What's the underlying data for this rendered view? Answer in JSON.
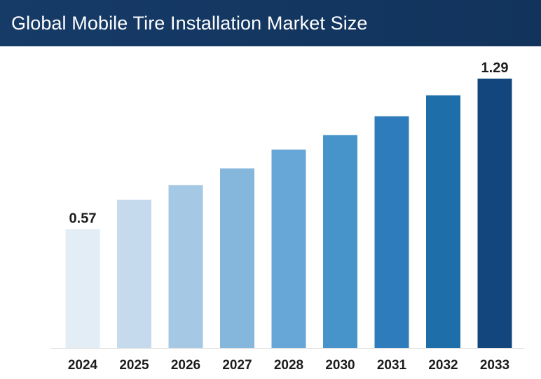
{
  "header": {
    "title": "Global Mobile Tire Installation Market Size"
  },
  "colors": {
    "header_background": "#143862",
    "bar_colors": [
      "#e3edf6",
      "#c5daec",
      "#a5c8e4",
      "#85b7dd",
      "#66a7d8",
      "#4794cb",
      "#2e7cbb",
      "#1e6ea9",
      "#13467d"
    ],
    "baseline": "#e6e6e6"
  },
  "chart_data": {
    "type": "bar",
    "title": "Global Mobile Tire Installation Market Size",
    "xlabel": "",
    "ylabel": "",
    "categories": [
      "2024",
      "2025",
      "2026",
      "2027",
      "2028",
      "2030",
      "2031",
      "2032",
      "2033"
    ],
    "values": [
      0.57,
      0.71,
      0.78,
      0.86,
      0.95,
      1.02,
      1.11,
      1.21,
      1.29
    ],
    "data_labels": [
      {
        "index": 0,
        "text": "0.57"
      },
      {
        "index": 8,
        "text": "1.29"
      }
    ],
    "ylim": [
      0,
      1.29
    ],
    "grid": false,
    "legend": "none"
  }
}
